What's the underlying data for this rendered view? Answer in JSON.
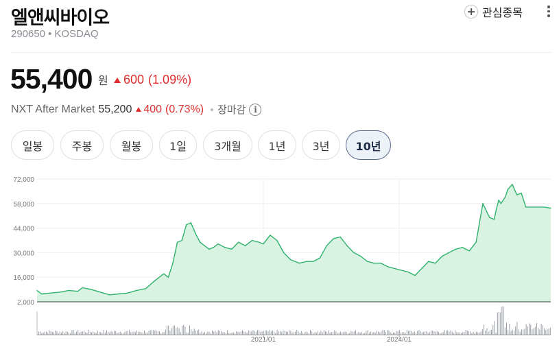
{
  "header": {
    "company_name": "엘앤씨바이오",
    "stock_code": "290650",
    "market": "KOSDAQ",
    "watchlist_label": "관심종목"
  },
  "quote": {
    "price": "55,400",
    "currency_unit": "원",
    "change": "600",
    "change_pct": "(1.09%)",
    "direction": "up"
  },
  "after_market": {
    "label": "NXT After Market",
    "price": "55,200",
    "change": "400",
    "change_pct": "(0.73%)",
    "status": "장마감"
  },
  "period_tabs": [
    {
      "label": "일봉",
      "active": false
    },
    {
      "label": "주봉",
      "active": false
    },
    {
      "label": "월봉",
      "active": false
    },
    {
      "label": "1일",
      "active": false
    },
    {
      "label": "3개월",
      "active": false
    },
    {
      "label": "1년",
      "active": false
    },
    {
      "label": "3년",
      "active": false
    },
    {
      "label": "10년",
      "active": true
    }
  ],
  "colors": {
    "up": "#e02e2e",
    "line": "#2fb26b",
    "area": "#d9f3e3",
    "volume": "#9aa0a6",
    "grid": "#eeeeee"
  },
  "chart_data": {
    "type": "area",
    "x_ticks": [
      "2021/01",
      "2024/01"
    ],
    "y_ticks": [
      "72,000",
      "58,000",
      "44,000",
      "30,000",
      "16,000",
      "2,000"
    ],
    "ylim": [
      2000,
      72000
    ],
    "grid": true,
    "series": [
      {
        "x": [
          2016.0,
          2016.1,
          2016.3,
          2016.5,
          2016.7,
          2016.9,
          2017.0,
          2017.2,
          2017.4,
          2017.6,
          2017.8,
          2018.0,
          2018.2,
          2018.4,
          2018.6,
          2018.8,
          2018.9,
          2019.0,
          2019.1,
          2019.2,
          2019.3,
          2019.4,
          2019.5,
          2019.6,
          2019.8,
          2019.9,
          2020.0,
          2020.15,
          2020.3,
          2020.45,
          2020.6,
          2020.75,
          2020.9,
          2021.0,
          2021.15,
          2021.3,
          2021.45,
          2021.6,
          2021.8,
          2021.95,
          2022.1,
          2022.25,
          2022.4,
          2022.55,
          2022.7,
          2022.85,
          2023.0,
          2023.15,
          2023.3,
          2023.45,
          2023.6,
          2023.75,
          2023.9,
          2024.05,
          2024.2,
          2024.35,
          2024.5,
          2024.65,
          2024.8,
          2024.95,
          2025.1,
          2025.25,
          2025.4,
          2025.55,
          2025.7,
          2025.85,
          2026.0,
          2026.1,
          2026.15,
          2026.2,
          2026.25,
          2026.35,
          2026.4,
          2026.5,
          2026.6,
          2026.7,
          2026.8,
          2026.9,
          2027.0,
          2027.1,
          2027.2,
          2027.35
        ],
        "values": [
          8500,
          6500,
          7000,
          7500,
          8500,
          8000,
          10000,
          9000,
          7500,
          6000,
          6500,
          7000,
          8500,
          9500,
          14000,
          18000,
          16000,
          24000,
          36000,
          37000,
          46000,
          47000,
          41000,
          36000,
          32000,
          33000,
          35000,
          33000,
          32000,
          36000,
          34000,
          37000,
          36000,
          35000,
          40000,
          37000,
          30000,
          26000,
          24000,
          25000,
          25000,
          27000,
          34000,
          38000,
          39000,
          34000,
          30000,
          28000,
          25000,
          24000,
          24000,
          22000,
          21000,
          20000,
          19000,
          17000,
          21000,
          25000,
          24000,
          28000,
          30000,
          32000,
          33000,
          31000,
          36000,
          58000,
          50000,
          49000,
          55000,
          60000,
          58000,
          62000,
          66000,
          69000,
          63000,
          64000,
          56000,
          56000,
          56000,
          56000,
          56000,
          55400
        ]
      }
    ]
  }
}
